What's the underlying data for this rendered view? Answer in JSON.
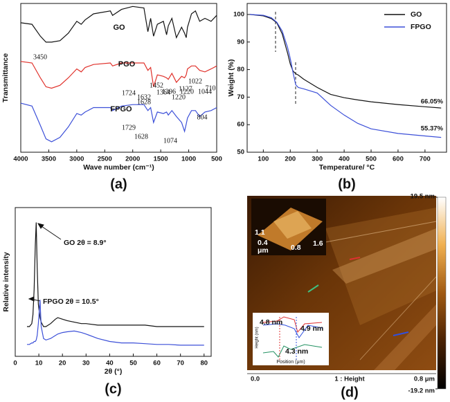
{
  "chart_data": [
    {
      "type": "line",
      "panel_label": "(a)",
      "x_label": "Wave number (cm⁻¹)",
      "y_label": "Transmittance",
      "x": [
        4000,
        3800,
        3650,
        3550,
        3450,
        3300,
        3150,
        3000,
        2920,
        2850,
        2700,
        2400,
        2360,
        2200,
        2000,
        1800,
        1729,
        1680,
        1628,
        1560,
        1452,
        1396,
        1364,
        1300,
        1220,
        1127,
        1074,
        1044,
        1022,
        950,
        880,
        804,
        710,
        600,
        500
      ],
      "xlim": [
        4000,
        500
      ],
      "xticks": [
        4000,
        3500,
        3000,
        2500,
        2000,
        1500,
        1000,
        500
      ],
      "ylim": [
        0,
        100
      ],
      "legend": "inline",
      "series": [
        {
          "name": "GO",
          "color": "#111111",
          "values": [
            87,
            86,
            78,
            74,
            74,
            75,
            80,
            88,
            86,
            89,
            93,
            95,
            92,
            96,
            98,
            97,
            81,
            90,
            78,
            86,
            88,
            79,
            85,
            90,
            77,
            84,
            80,
            77,
            84,
            93,
            95,
            88,
            90,
            88,
            92
          ]
        },
        {
          "name": "PGO",
          "color": "#e0302a",
          "values": [
            61,
            60,
            50,
            44,
            43,
            45,
            50,
            56,
            54,
            57,
            59,
            60,
            58,
            60,
            60,
            60,
            55,
            57,
            44,
            52,
            51,
            50,
            49,
            53,
            47,
            51,
            50,
            52,
            56,
            58,
            58,
            55,
            54,
            56,
            58
          ]
        },
        {
          "name": "FPGO",
          "color": "#3b4fd8",
          "values": [
            33,
            31,
            18,
            9,
            7,
            10,
            17,
            26,
            25,
            27,
            30,
            30,
            28,
            31,
            32,
            32,
            28,
            30,
            20,
            27,
            26,
            27,
            25,
            28,
            24,
            20,
            14,
            19,
            23,
            28,
            28,
            24,
            27,
            28,
            30
          ]
        }
      ],
      "annotations": [
        "3450",
        "1724",
        "1628",
        "1396",
        "1220",
        "1044",
        "1632",
        "1452",
        "1364",
        "1220",
        "1127",
        "1022",
        "710",
        "1729",
        "1628",
        "1074",
        "804"
      ]
    },
    {
      "type": "line",
      "panel_label": "(b)",
      "x_label": "Temperature/ °C",
      "y_label": "Weight (%)",
      "x": [
        50,
        100,
        130,
        150,
        170,
        190,
        200,
        210,
        220,
        230,
        250,
        300,
        350,
        400,
        450,
        500,
        600,
        700,
        760
      ],
      "xlim": [
        40,
        780
      ],
      "xticks": [
        100,
        200,
        300,
        400,
        500,
        600,
        700
      ],
      "ylim": [
        50,
        104
      ],
      "yticks": [
        50,
        60,
        70,
        80,
        90,
        100
      ],
      "legend": "upper right",
      "series": [
        {
          "name": "GO",
          "color": "#111111",
          "values": [
            100,
            99.5,
            98.5,
            97,
            93,
            86,
            82,
            79.5,
            78.5,
            78,
            76.5,
            73.5,
            71,
            69.8,
            69,
            68.3,
            67.3,
            66.5,
            66.05
          ]
        },
        {
          "name": "FPGO",
          "color": "#3b4fd8",
          "values": [
            100,
            99.7,
            98.8,
            97.2,
            94,
            88,
            84,
            79,
            74.5,
            73.5,
            73,
            71.5,
            67,
            63.5,
            60.5,
            58.5,
            56.8,
            55.9,
            55.37
          ]
        }
      ],
      "annotations": [
        "66.05%",
        "55.37%"
      ]
    },
    {
      "type": "line",
      "panel_label": "(c)",
      "x_label": "2θ (°)",
      "y_label": "Relative intensity",
      "x": [
        5,
        6,
        7,
        7.5,
        8,
        8.5,
        8.9,
        9.3,
        9.8,
        10.5,
        11,
        12,
        13,
        15,
        17,
        18,
        20,
        22,
        25,
        28,
        30,
        35,
        40,
        45,
        50,
        55,
        60,
        65,
        70,
        75,
        80
      ],
      "xlim": [
        0,
        83
      ],
      "xticks": [
        0,
        10,
        20,
        30,
        40,
        50,
        60,
        70,
        80
      ],
      "ylim": [
        0,
        100
      ],
      "series": [
        {
          "color": "#111111",
          "values": [
            20,
            20,
            22,
            28,
            45,
            75,
            90,
            60,
            35,
            26,
            23,
            20,
            20,
            22,
            25,
            26,
            25,
            24,
            23,
            22,
            22,
            21,
            21,
            21,
            21,
            21,
            20,
            20,
            20,
            20,
            20
          ]
        },
        {
          "color": "#3b4fd8",
          "values": [
            8,
            8,
            9,
            9,
            10,
            10,
            11,
            14,
            22,
            38,
            20,
            12,
            11,
            12,
            14,
            15,
            16,
            16.5,
            17,
            16,
            15,
            12,
            10,
            9,
            9,
            8.5,
            8,
            8,
            7.5,
            7.5,
            7.5
          ]
        }
      ],
      "annotations": [
        "GO  2θ = 8.9°",
        "FPGO  2θ = 10.5°"
      ]
    },
    {
      "type": "image",
      "panel_label": "(d)",
      "clim": [
        -19.2,
        19.5
      ],
      "colorbar_ticks": [
        {
          "value": 19.5,
          "label": "19.5 nm"
        },
        {
          "value": -19.2,
          "label": "-19.2 nm"
        }
      ],
      "scale_labels": [
        "0.0",
        "1 : Height",
        "0.8 μm"
      ],
      "inset_labels": [
        "1.1",
        "0.4",
        "μm",
        "0.8",
        "1.6"
      ],
      "profile": {
        "x_label": "Position (μm)",
        "y_label": "Height (nm)",
        "annotations": [
          "4.8 nm",
          "4.9 nm",
          "4.3 nm"
        ]
      }
    }
  ]
}
